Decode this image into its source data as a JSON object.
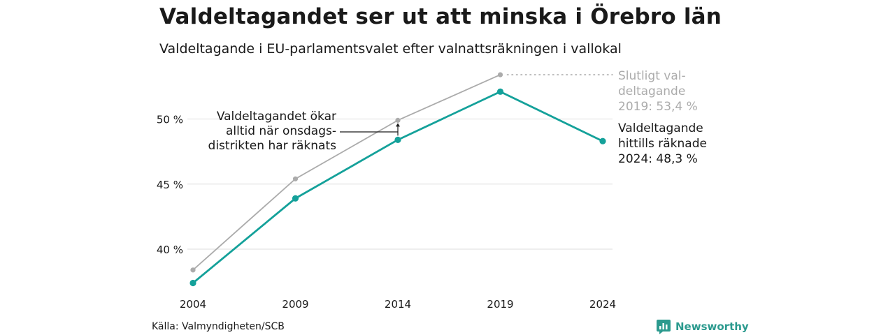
{
  "title": "Valdeltagandet ser ut att minska i Örebro län",
  "subtitle": "Valdeltagande i EU-parlamentsvalet efter valnattsräkningen i vallokal",
  "source": "Källa: Valmyndigheten/SCB",
  "brand": "Newsworthy",
  "colors": {
    "current": "#14a19a",
    "final": "#ababab",
    "text": "#1a1a1a",
    "grid": "#dddddd",
    "brand": "#2b9a8e"
  },
  "chart_data": {
    "type": "line",
    "x": [
      "2004",
      "2009",
      "2014",
      "2019",
      "2024"
    ],
    "ylim": [
      37,
      54
    ],
    "yticks": [
      40,
      45,
      50
    ],
    "ytick_labels": [
      "40 %",
      "45 %",
      "50 %"
    ],
    "grid": true,
    "series": [
      {
        "key": "final",
        "values": [
          38.4,
          45.4,
          49.9,
          53.4,
          null
        ]
      },
      {
        "key": "current",
        "values": [
          37.4,
          43.9,
          48.4,
          52.1,
          48.3
        ]
      }
    ],
    "annotations": {
      "final_label": [
        "Slutligt val-",
        "deltagande",
        "2019: 53,4 %"
      ],
      "current_label": [
        "Valdeltagande",
        "hittills räknade",
        "2024: 48,3 %"
      ],
      "note": [
        "Valdeltagandet ökar",
        "alltid när onsdags-",
        "distrikten har räknats"
      ]
    }
  }
}
